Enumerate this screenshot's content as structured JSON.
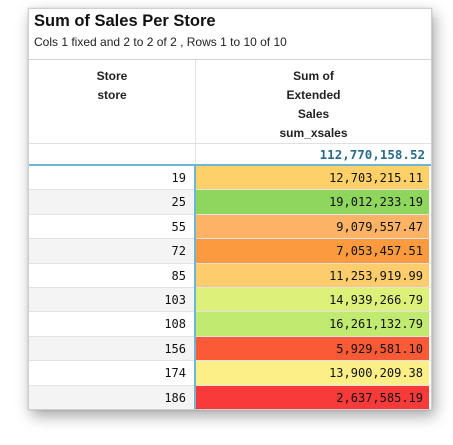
{
  "report": {
    "title": "Sum of Sales Per Store",
    "subtitle": "Cols 1 fixed and 2 to 2 of 2 , Rows 1 to 10 of 10"
  },
  "columns": {
    "store": {
      "line1": "Store",
      "line2": "store"
    },
    "sales": {
      "line1": "Sum of",
      "line2": "Extended",
      "line3": "Sales",
      "line4": "sum_xsales"
    }
  },
  "total": "112,770,158.52",
  "colors": {
    "accent_line": "#6cb8d4",
    "total_text": "#2a6b8a"
  },
  "rows": [
    {
      "store": "19",
      "sales": "12,703,215.11",
      "color": "#fdd06a"
    },
    {
      "store": "25",
      "sales": "19,012,233.19",
      "color": "#8fd65e"
    },
    {
      "store": "55",
      "sales": "9,079,557.47",
      "color": "#fcb366"
    },
    {
      "store": "72",
      "sales": "7,053,457.51",
      "color": "#fb9a3e"
    },
    {
      "store": "85",
      "sales": "11,253,919.99",
      "color": "#fdcc6c"
    },
    {
      "store": "103",
      "sales": "14,939,266.79",
      "color": "#ddf07a"
    },
    {
      "store": "108",
      "sales": "16,261,132.79",
      "color": "#c1ea70"
    },
    {
      "store": "156",
      "sales": "5,929,581.10",
      "color": "#fb5a36"
    },
    {
      "store": "174",
      "sales": "13,900,209.38",
      "color": "#fdef88"
    },
    {
      "store": "186",
      "sales": "2,637,585.19",
      "color": "#f83a3a"
    }
  ]
}
